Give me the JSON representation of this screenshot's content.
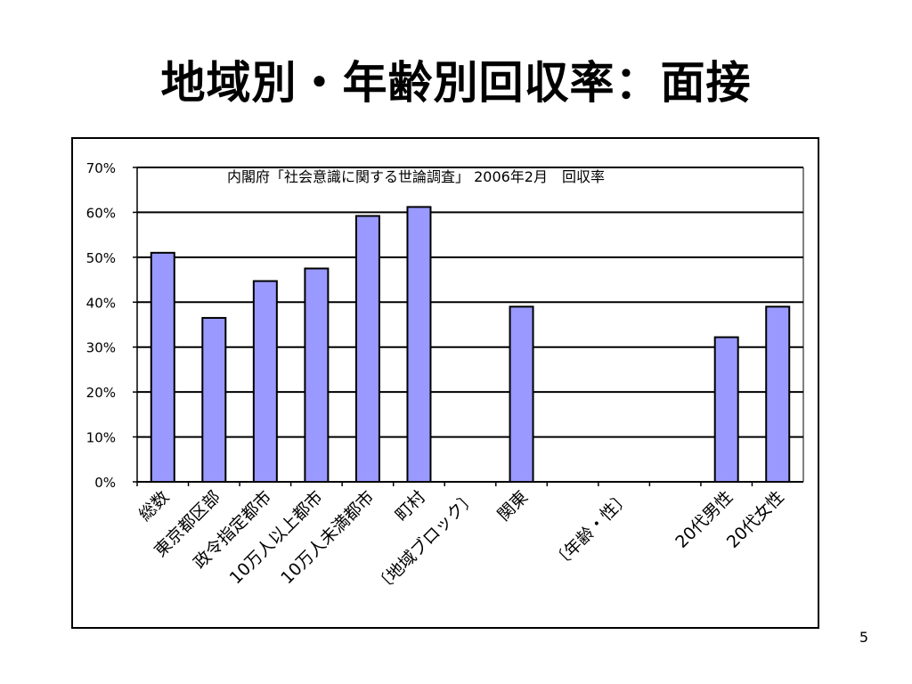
{
  "slide": {
    "title": "地域別・年齢別回収率：面接",
    "page_number": "5"
  },
  "colors": {
    "bar_fill": "#9999ff",
    "bar_stroke": "#000000",
    "grid": "#000000",
    "background": "#ffffff"
  },
  "chart_data": {
    "type": "bar",
    "title": "内閣府「社会意識に関する世論調査」 2006年2月　回収率",
    "xlabel": "",
    "ylabel": "",
    "ylim": [
      0,
      0.7
    ],
    "y_tick_values": [
      0,
      0.1,
      0.2,
      0.3,
      0.4,
      0.5,
      0.6,
      0.7
    ],
    "y_tick_labels": [
      "0%",
      "10%",
      "20%",
      "30%",
      "40%",
      "50%",
      "60%",
      "70%"
    ],
    "grid": true,
    "legend": "none",
    "categories": [
      "総数",
      "東京都区部",
      "政令指定都市",
      "10万人以上都市",
      "10万人未満都市",
      "町村",
      "〔地域ブロック〕",
      "関東",
      "",
      "〔年齢・性〕",
      "",
      "20代男性",
      "20代女性"
    ],
    "values": [
      0.51,
      0.365,
      0.447,
      0.475,
      0.592,
      0.612,
      null,
      0.39,
      null,
      null,
      null,
      0.322,
      0.39
    ]
  }
}
